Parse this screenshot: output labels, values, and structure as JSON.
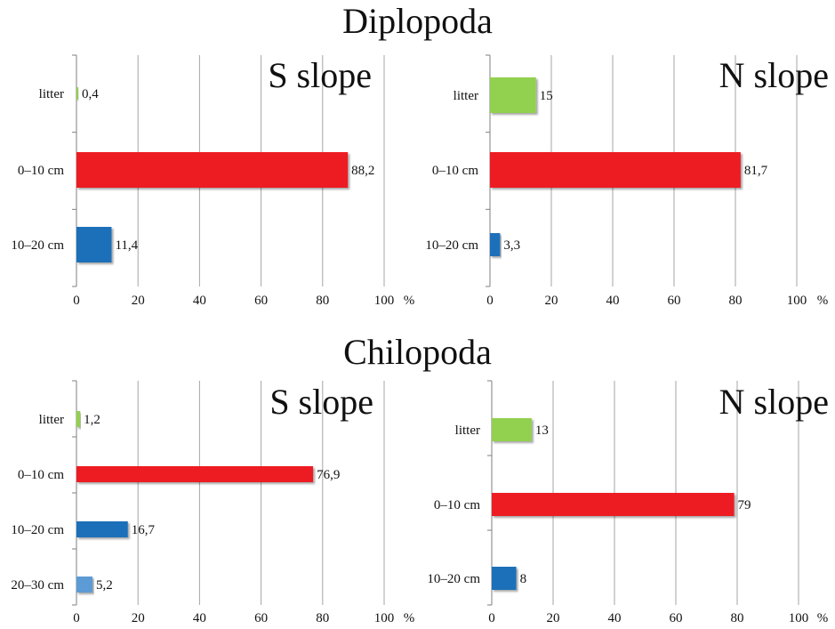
{
  "titles": {
    "top": "Diplopoda",
    "bottom": "Chilopoda"
  },
  "colors": {
    "litter": "#92d050",
    "0-10": "#ed1c24",
    "10-20": "#1f6fb9",
    "20-30": "#5b9bd5",
    "grid": "#a6a6a6"
  },
  "chart_data": [
    {
      "type": "bar",
      "orientation": "horizontal",
      "group": "Diplopoda",
      "title": "S slope",
      "categories": [
        "litter",
        "0–10 cm",
        "10–20 cm"
      ],
      "values": [
        0.4,
        88.2,
        11.4
      ],
      "value_labels": [
        "0,4",
        "88,2",
        "11,4"
      ],
      "xlim": [
        0,
        100
      ],
      "xticks": [
        "0",
        "20",
        "40",
        "60",
        "80",
        "100"
      ],
      "unit": "%",
      "grid": "vertical"
    },
    {
      "type": "bar",
      "orientation": "horizontal",
      "group": "Diplopoda",
      "title": "N slope",
      "categories": [
        "litter",
        "0–10 cm",
        "10–20 cm"
      ],
      "values": [
        15,
        81.7,
        3.3
      ],
      "value_labels": [
        "15",
        "81,7",
        "3,3"
      ],
      "xlim": [
        0,
        100
      ],
      "xticks": [
        "0",
        "20",
        "40",
        "60",
        "80",
        "100"
      ],
      "unit": "%",
      "grid": "vertical"
    },
    {
      "type": "bar",
      "orientation": "horizontal",
      "group": "Chilopoda",
      "title": "S slope",
      "categories": [
        "litter",
        "0–10 cm",
        "10–20 cm",
        "20–30 cm"
      ],
      "values": [
        1.2,
        76.9,
        16.7,
        5.2
      ],
      "value_labels": [
        "1,2",
        "76,9",
        "16,7",
        "5,2"
      ],
      "xlim": [
        0,
        100
      ],
      "xticks": [
        "0",
        "20",
        "40",
        "60",
        "80",
        "100"
      ],
      "unit": "%",
      "grid": "vertical"
    },
    {
      "type": "bar",
      "orientation": "horizontal",
      "group": "Chilopoda",
      "title": "N slope",
      "categories": [
        "litter",
        "0–10 cm",
        "10–20 cm"
      ],
      "values": [
        13,
        79,
        8
      ],
      "value_labels": [
        "13",
        "79",
        "8"
      ],
      "xlim": [
        0,
        100
      ],
      "xticks": [
        "0",
        "20",
        "40",
        "60",
        "80",
        "100"
      ],
      "unit": "%",
      "grid": "vertical"
    }
  ]
}
